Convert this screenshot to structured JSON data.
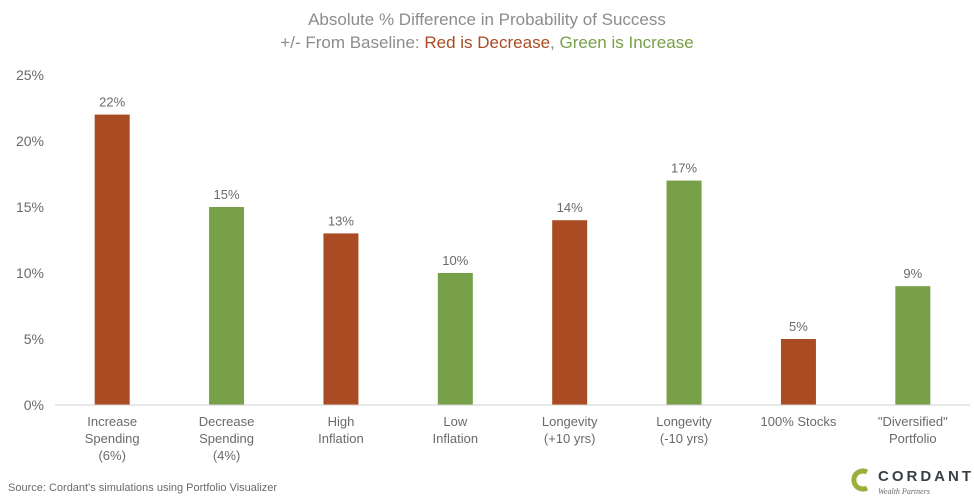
{
  "header": {
    "title": "Absolute % Difference in Probability of Success",
    "subtitle_prefix": "+/- From Baseline: ",
    "subtitle_red": "Red is Decrease",
    "subtitle_sep": ", ",
    "subtitle_green": "Green is Increase"
  },
  "colors": {
    "decrease": "#a94c24",
    "increase": "#78a048",
    "title": "#8c8c8c",
    "axis_text": "#6a6a6a"
  },
  "chart_data": {
    "type": "bar",
    "title": "Absolute % Difference in Probability of Success",
    "categories": [
      [
        "Increase",
        "Spending",
        "(6%)"
      ],
      [
        "Decrease",
        "Spending",
        "(4%)"
      ],
      [
        "High",
        "Inflation"
      ],
      [
        "Low",
        "Inflation"
      ],
      [
        "Longevity",
        "(+10 yrs)"
      ],
      [
        "Longevity",
        "(-10 yrs)"
      ],
      [
        "100% Stocks"
      ],
      [
        "\"Diversified\"",
        "Portfolio"
      ]
    ],
    "values": [
      22,
      15,
      13,
      10,
      14,
      17,
      5,
      9
    ],
    "value_labels": [
      "22%",
      "15%",
      "13%",
      "10%",
      "14%",
      "17%",
      "5%",
      "9%"
    ],
    "direction": [
      "decrease",
      "increase",
      "decrease",
      "increase",
      "decrease",
      "increase",
      "decrease",
      "increase"
    ],
    "ylim": [
      0,
      25
    ],
    "yticks": [
      0,
      5,
      10,
      15,
      20,
      25
    ],
    "ytick_labels": [
      "0%",
      "5%",
      "10%",
      "15%",
      "20%",
      "25%"
    ],
    "xlabel": "",
    "ylabel": "",
    "grid": false,
    "legend": "none"
  },
  "footer": {
    "source": "Source: Cordant's simulations using Portfolio Visualizer",
    "logo_name": "CORDANT",
    "logo_sub": "Wealth Partners"
  }
}
